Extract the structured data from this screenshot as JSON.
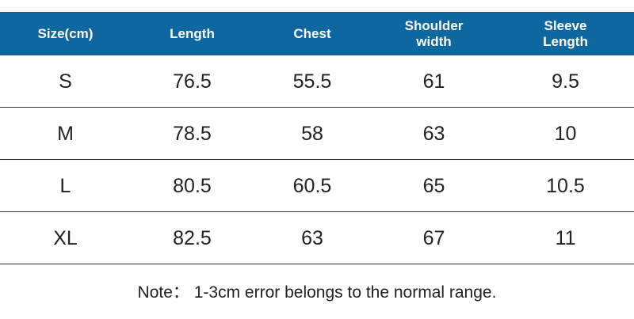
{
  "table": {
    "header": [
      "Size(cm)",
      "Length",
      "Chest",
      "Shoulder width",
      "Sleeve Length"
    ],
    "rows": [
      [
        "S",
        "76.5",
        "55.5",
        "61",
        "9.5"
      ],
      [
        "M",
        "78.5",
        "58",
        "63",
        "10"
      ],
      [
        "L",
        "80.5",
        "60.5",
        "65",
        "10.5"
      ],
      [
        "XL",
        "82.5",
        "63",
        "67",
        "11"
      ]
    ]
  },
  "note": "Note： 1-3cm error belongs to the normal range."
}
